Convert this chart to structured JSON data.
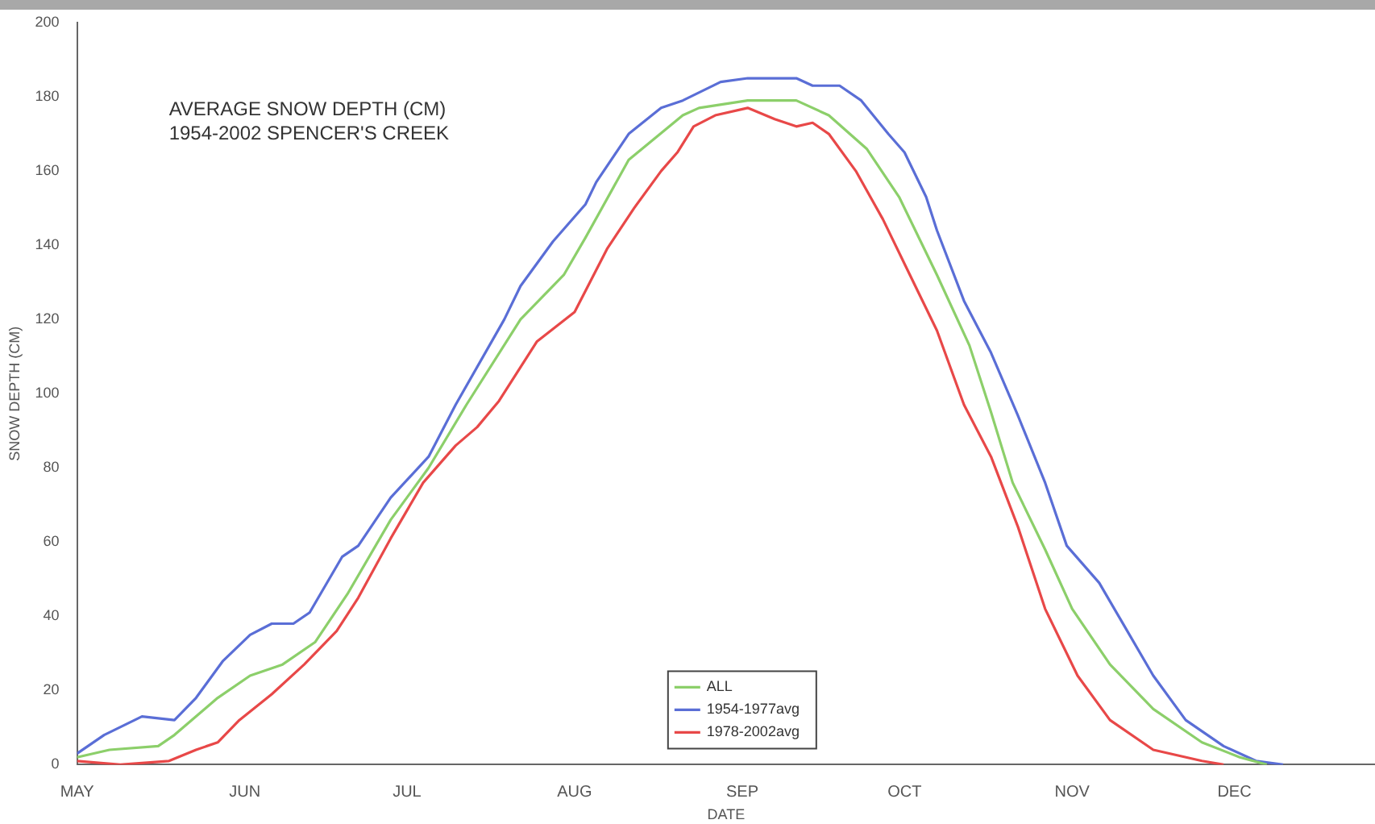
{
  "chart_data": {
    "type": "line",
    "title": "AVERAGE SNOW DEPTH (CM)",
    "subtitle": "1954-2002 SPENCER'S CREEK",
    "xlabel": "DATE",
    "ylabel": "SNOW DEPTH (CM)",
    "xlim": [
      "--05-01",
      "--12-27"
    ],
    "ylim": [
      0,
      200
    ],
    "yticks": [
      0,
      20,
      40,
      60,
      80,
      100,
      120,
      140,
      160,
      180,
      200
    ],
    "xticks": [
      {
        "value": "--05-01",
        "label": "MAY"
      },
      {
        "value": "--06-01",
        "label": "JUN"
      },
      {
        "value": "--07-01",
        "label": "JUL"
      },
      {
        "value": "--08-01",
        "label": "AUG"
      },
      {
        "value": "--09-01",
        "label": "SEP"
      },
      {
        "value": "--10-01",
        "label": "OCT"
      },
      {
        "value": "--11-01",
        "label": "NOV"
      },
      {
        "value": "--12-01",
        "label": "DEC"
      }
    ],
    "grid": false,
    "legend": "bottom",
    "marker": "none",
    "line_style": "solid",
    "series": [
      {
        "name": "ALL",
        "color": "#8ccf6a",
        "x": [
          "--05-01",
          "--05-07",
          "--05-16",
          "--05-19",
          "--05-27",
          "--06-02",
          "--06-08",
          "--06-14",
          "--06-20",
          "--06-28",
          "--07-05",
          "--07-12",
          "--07-22",
          "--07-30",
          "--08-03",
          "--08-11",
          "--08-21",
          "--08-24",
          "--09-02",
          "--09-11",
          "--09-17",
          "--09-24",
          "--09-30",
          "--10-07",
          "--10-13",
          "--10-17",
          "--10-21",
          "--10-27",
          "--11-01",
          "--11-08",
          "--11-16",
          "--11-25",
          "--12-02",
          "--12-07"
        ],
        "values": [
          2,
          4,
          5,
          8,
          18,
          24,
          27,
          33,
          46,
          66,
          80,
          97,
          120,
          132,
          142,
          163,
          175,
          177,
          179,
          179,
          175,
          166,
          153,
          132,
          113,
          95,
          76,
          58,
          42,
          27,
          15,
          6,
          2,
          0
        ]
      },
      {
        "name": "1954-1977avg",
        "color": "#5a6ed6",
        "x": [
          "--05-01",
          "--05-06",
          "--05-13",
          "--05-19",
          "--05-23",
          "--05-28",
          "--06-02",
          "--06-06",
          "--06-10",
          "--06-13",
          "--06-19",
          "--06-22",
          "--06-28",
          "--07-05",
          "--07-10",
          "--07-19",
          "--07-22",
          "--07-28",
          "--08-03",
          "--08-05",
          "--08-11",
          "--08-17",
          "--08-21",
          "--08-28",
          "--09-02",
          "--09-11",
          "--09-14",
          "--09-19",
          "--09-23",
          "--09-28",
          "--10-01",
          "--10-05",
          "--10-07",
          "--10-12",
          "--10-17",
          "--10-22",
          "--10-27",
          "--10-31",
          "--11-06",
          "--11-10",
          "--11-16",
          "--11-22",
          "--11-29",
          "--12-05",
          "--12-10"
        ],
        "values": [
          3,
          8,
          13,
          12,
          18,
          28,
          35,
          38,
          38,
          41,
          56,
          59,
          72,
          83,
          97,
          120,
          129,
          141,
          151,
          157,
          170,
          177,
          179,
          184,
          185,
          185,
          183,
          183,
          179,
          170,
          165,
          153,
          144,
          125,
          111,
          94,
          76,
          59,
          49,
          39,
          24,
          12,
          5,
          1,
          0
        ]
      },
      {
        "name": "1978-2002avg",
        "color": "#e84848",
        "x": [
          "--05-01",
          "--05-09",
          "--05-18",
          "--05-23",
          "--05-27",
          "--05-31",
          "--06-06",
          "--06-12",
          "--06-18",
          "--06-22",
          "--06-28",
          "--07-04",
          "--07-10",
          "--07-14",
          "--07-18",
          "--07-25",
          "--08-01",
          "--08-07",
          "--08-12",
          "--08-17",
          "--08-20",
          "--08-23",
          "--08-27",
          "--09-02",
          "--09-07",
          "--09-11",
          "--09-14",
          "--09-17",
          "--09-22",
          "--09-27",
          "--10-02",
          "--10-07",
          "--10-12",
          "--10-17",
          "--10-22",
          "--10-27",
          "--11-02",
          "--11-08",
          "--11-16",
          "--11-25",
          "--11-29"
        ],
        "values": [
          1,
          0,
          1,
          4,
          6,
          12,
          19,
          27,
          36,
          45,
          61,
          76,
          86,
          91,
          98,
          114,
          122,
          139,
          150,
          160,
          165,
          172,
          175,
          177,
          174,
          172,
          173,
          170,
          160,
          147,
          132,
          117,
          97,
          83,
          64,
          42,
          24,
          12,
          4,
          1,
          0
        ]
      }
    ]
  }
}
